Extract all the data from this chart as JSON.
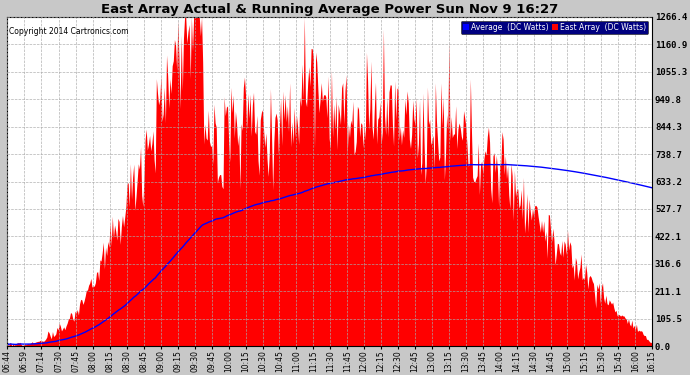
{
  "title": "East Array Actual & Running Average Power Sun Nov 9 16:27",
  "copyright": "Copyright 2014 Cartronics.com",
  "legend_avg": "Average  (DC Watts)",
  "legend_east": "East Array  (DC Watts)",
  "yticks": [
    0.0,
    105.5,
    211.1,
    316.6,
    422.1,
    527.7,
    633.2,
    738.7,
    844.3,
    949.8,
    1055.3,
    1160.9,
    1266.4
  ],
  "ymax": 1266.4,
  "bg_color": "#c8c8c8",
  "plot_bg_color": "#ffffff",
  "grid_color": "#aaaaaa",
  "bar_color": "#ff0000",
  "avg_color": "#0000ff",
  "title_color": "#000000",
  "time_labels": [
    "06:44",
    "06:59",
    "07:14",
    "07:30",
    "07:45",
    "08:00",
    "08:15",
    "08:30",
    "08:45",
    "09:00",
    "09:15",
    "09:30",
    "09:45",
    "10:00",
    "10:15",
    "10:30",
    "10:45",
    "11:00",
    "11:15",
    "11:30",
    "11:45",
    "12:00",
    "12:15",
    "12:30",
    "12:45",
    "13:00",
    "13:15",
    "13:30",
    "13:45",
    "14:00",
    "14:15",
    "14:30",
    "14:45",
    "15:00",
    "15:15",
    "15:30",
    "15:45",
    "16:00",
    "16:15"
  ],
  "start_hhmm": "06:44",
  "end_hhmm": "16:15"
}
